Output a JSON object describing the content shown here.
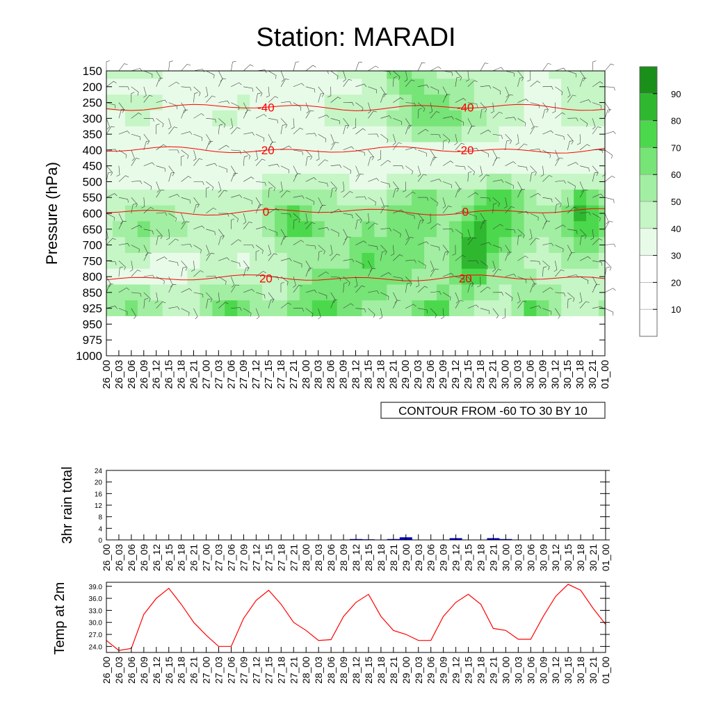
{
  "title": "Station: MARADI",
  "colors": {
    "shade": [
      "#ffffff",
      "#ffffff",
      "#ffffff",
      "#e8fbe8",
      "#c6f5c6",
      "#a2eea2",
      "#76e476",
      "#4cd84c",
      "#2fb82f",
      "#1a8f1a"
    ],
    "temp_contour": "#ff0000",
    "rain_bar": "#0000cc",
    "temp_line": "#ff0000",
    "axis": "#000000"
  },
  "time_labels": [
    "26_00",
    "26_03",
    "26_06",
    "26_09",
    "26_12",
    "26_15",
    "26_18",
    "26_21",
    "27_00",
    "27_03",
    "27_06",
    "27_09",
    "27_12",
    "27_15",
    "27_18",
    "27_21",
    "28_00",
    "28_03",
    "28_06",
    "28_09",
    "28_12",
    "28_15",
    "28_18",
    "28_21",
    "29_00",
    "29_03",
    "29_06",
    "29_09",
    "29_12",
    "29_15",
    "29_18",
    "29_21",
    "30_00",
    "30_03",
    "30_06",
    "30_09",
    "30_12",
    "30_15",
    "30_18",
    "30_21",
    "01_00"
  ],
  "main_chart": {
    "ylabel": "Pressure (hPa)",
    "pressure_levels": [
      150,
      200,
      250,
      300,
      350,
      400,
      450,
      500,
      550,
      600,
      650,
      700,
      750,
      800,
      850,
      925,
      950,
      975,
      1000
    ],
    "footer": "CONTOUR FROM -60 TO 30 BY 10",
    "colorbar_labels": [
      "10",
      "20",
      "30",
      "40",
      "50",
      "60",
      "70",
      "80",
      "90"
    ]
  },
  "chart_data": [
    {
      "type": "heatmap",
      "title": "Station: MARADI",
      "ylabel": "Pressure (hPa)",
      "y_levels": [
        150,
        200,
        250,
        300,
        350,
        400,
        450,
        500,
        550,
        600,
        650,
        700,
        750,
        800,
        850,
        925,
        950,
        975,
        1000
      ],
      "x": [
        "26_00",
        "26_03",
        "26_06",
        "26_09",
        "26_12",
        "26_15",
        "26_18",
        "26_21",
        "27_00",
        "27_03",
        "27_06",
        "27_09",
        "27_12",
        "27_15",
        "27_18",
        "27_21",
        "28_00",
        "28_03",
        "28_06",
        "28_09",
        "28_12",
        "28_15",
        "28_18",
        "28_21",
        "29_00",
        "29_03",
        "29_06",
        "29_09",
        "29_12",
        "29_15",
        "29_18",
        "29_21",
        "30_00",
        "30_03",
        "30_06",
        "30_09",
        "30_12",
        "30_15",
        "30_18",
        "30_21",
        "01_00"
      ],
      "shading_variable_levels": [
        10,
        20,
        30,
        40,
        50,
        60,
        70,
        80,
        90
      ],
      "humidity_columns": [
        [
          45,
          35,
          40,
          30,
          30,
          30,
          30,
          30,
          45,
          45,
          45,
          45,
          45,
          30,
          55,
          55,
          0,
          0,
          0
        ],
        [
          40,
          30,
          40,
          35,
          30,
          30,
          30,
          30,
          45,
          45,
          50,
          45,
          40,
          35,
          50,
          55,
          0,
          0,
          0
        ],
        [
          40,
          30,
          40,
          40,
          30,
          30,
          30,
          30,
          45,
          55,
          55,
          50,
          40,
          35,
          50,
          60,
          0,
          0,
          0
        ],
        [
          40,
          30,
          45,
          40,
          30,
          30,
          30,
          30,
          45,
          55,
          60,
          50,
          40,
          35,
          50,
          55,
          0,
          0,
          0
        ],
        [
          40,
          30,
          40,
          35,
          30,
          30,
          30,
          30,
          40,
          50,
          55,
          45,
          35,
          35,
          45,
          50,
          0,
          0,
          0
        ],
        [
          35,
          30,
          35,
          30,
          30,
          30,
          30,
          30,
          40,
          50,
          55,
          45,
          35,
          35,
          40,
          45,
          0,
          0,
          0
        ],
        [
          35,
          30,
          30,
          30,
          30,
          30,
          30,
          30,
          40,
          45,
          50,
          45,
          35,
          35,
          40,
          40,
          0,
          0,
          0
        ],
        [
          35,
          30,
          30,
          30,
          30,
          30,
          30,
          30,
          40,
          40,
          45,
          40,
          35,
          40,
          45,
          40,
          0,
          0,
          0
        ],
        [
          35,
          30,
          35,
          35,
          30,
          30,
          30,
          35,
          45,
          40,
          45,
          45,
          40,
          40,
          50,
          55,
          0,
          0,
          0
        ],
        [
          35,
          30,
          35,
          40,
          30,
          30,
          30,
          35,
          45,
          40,
          45,
          45,
          40,
          45,
          55,
          65,
          0,
          0,
          0
        ],
        [
          35,
          30,
          35,
          40,
          30,
          30,
          30,
          35,
          45,
          40,
          45,
          45,
          40,
          45,
          55,
          70,
          0,
          0,
          0
        ],
        [
          35,
          30,
          40,
          35,
          30,
          30,
          30,
          35,
          45,
          40,
          45,
          40,
          35,
          40,
          50,
          60,
          0,
          0,
          0
        ],
        [
          30,
          30,
          35,
          35,
          30,
          30,
          30,
          35,
          45,
          40,
          45,
          40,
          40,
          45,
          50,
          50,
          0,
          0,
          0
        ],
        [
          30,
          30,
          35,
          35,
          30,
          30,
          30,
          40,
          50,
          50,
          55,
          45,
          40,
          45,
          45,
          50,
          0,
          0,
          0
        ],
        [
          30,
          30,
          35,
          35,
          30,
          30,
          30,
          40,
          55,
          65,
          65,
          55,
          45,
          45,
          45,
          55,
          0,
          0,
          0
        ],
        [
          30,
          30,
          35,
          35,
          30,
          30,
          30,
          40,
          55,
          70,
          75,
          55,
          50,
          50,
          55,
          60,
          0,
          0,
          0
        ],
        [
          30,
          30,
          35,
          35,
          30,
          30,
          30,
          40,
          55,
          65,
          70,
          55,
          50,
          55,
          60,
          65,
          0,
          0,
          0
        ],
        [
          35,
          30,
          35,
          35,
          30,
          30,
          30,
          40,
          50,
          55,
          60,
          55,
          55,
          60,
          60,
          70,
          0,
          0,
          0
        ],
        [
          35,
          30,
          40,
          40,
          30,
          30,
          30,
          40,
          50,
          55,
          55,
          55,
          55,
          60,
          60,
          70,
          0,
          0,
          0
        ],
        [
          40,
          35,
          40,
          40,
          30,
          30,
          30,
          40,
          45,
          50,
          55,
          55,
          55,
          60,
          60,
          65,
          0,
          0,
          0
        ],
        [
          40,
          35,
          40,
          40,
          30,
          30,
          30,
          35,
          45,
          50,
          55,
          60,
          60,
          60,
          60,
          60,
          0,
          0,
          0
        ],
        [
          45,
          40,
          40,
          40,
          35,
          30,
          30,
          35,
          45,
          55,
          60,
          65,
          70,
          65,
          60,
          55,
          0,
          0,
          0
        ],
        [
          45,
          40,
          40,
          45,
          35,
          30,
          30,
          35,
          45,
          55,
          55,
          60,
          65,
          65,
          60,
          50,
          0,
          0,
          0
        ],
        [
          60,
          55,
          45,
          50,
          40,
          30,
          30,
          40,
          50,
          60,
          60,
          60,
          60,
          60,
          55,
          50,
          0,
          0,
          0
        ],
        [
          60,
          60,
          55,
          55,
          45,
          30,
          30,
          45,
          55,
          65,
          65,
          65,
          60,
          60,
          55,
          55,
          0,
          0,
          0
        ],
        [
          55,
          60,
          60,
          60,
          50,
          35,
          30,
          45,
          60,
          65,
          65,
          60,
          60,
          55,
          55,
          60,
          0,
          0,
          0
        ],
        [
          50,
          55,
          65,
          65,
          55,
          35,
          30,
          45,
          60,
          60,
          60,
          55,
          55,
          55,
          55,
          70,
          0,
          0,
          0
        ],
        [
          45,
          50,
          60,
          65,
          55,
          35,
          30,
          40,
          55,
          55,
          55,
          55,
          55,
          55,
          60,
          70,
          0,
          0,
          0
        ],
        [
          45,
          50,
          55,
          60,
          50,
          35,
          30,
          40,
          50,
          55,
          60,
          60,
          60,
          60,
          55,
          55,
          0,
          0,
          0
        ],
        [
          40,
          50,
          50,
          55,
          45,
          30,
          30,
          40,
          55,
          65,
          70,
          80,
          80,
          70,
          60,
          50,
          0,
          0,
          0
        ],
        [
          40,
          45,
          45,
          50,
          40,
          30,
          30,
          45,
          65,
          75,
          80,
          85,
          80,
          70,
          55,
          45,
          0,
          0,
          0
        ],
        [
          40,
          45,
          40,
          45,
          40,
          30,
          30,
          50,
          70,
          75,
          75,
          70,
          65,
          55,
          50,
          40,
          0,
          0,
          0
        ],
        [
          40,
          40,
          40,
          40,
          35,
          30,
          30,
          50,
          70,
          70,
          70,
          65,
          55,
          50,
          45,
          45,
          0,
          0,
          0
        ],
        [
          40,
          40,
          40,
          40,
          35,
          30,
          30,
          45,
          60,
          65,
          60,
          55,
          50,
          50,
          50,
          55,
          0,
          0,
          0
        ],
        [
          35,
          35,
          35,
          35,
          30,
          30,
          30,
          40,
          50,
          55,
          55,
          50,
          45,
          50,
          55,
          70,
          0,
          0,
          0
        ],
        [
          35,
          35,
          35,
          35,
          30,
          30,
          30,
          40,
          45,
          50,
          50,
          45,
          40,
          45,
          55,
          65,
          0,
          0,
          0
        ],
        [
          40,
          35,
          35,
          35,
          30,
          30,
          30,
          40,
          45,
          50,
          55,
          50,
          45,
          45,
          50,
          50,
          0,
          0,
          0
        ],
        [
          45,
          40,
          40,
          40,
          35,
          30,
          30,
          40,
          55,
          65,
          65,
          55,
          50,
          45,
          45,
          45,
          0,
          0,
          0
        ],
        [
          45,
          40,
          40,
          40,
          35,
          30,
          30,
          45,
          70,
          80,
          75,
          60,
          50,
          45,
          40,
          40,
          0,
          0,
          0
        ],
        [
          45,
          40,
          40,
          40,
          35,
          30,
          30,
          45,
          65,
          75,
          70,
          60,
          50,
          45,
          45,
          40,
          0,
          0,
          0
        ],
        [
          45,
          40,
          40,
          40,
          35,
          30,
          30,
          40,
          55,
          60,
          60,
          55,
          45,
          40,
          40,
          55,
          0,
          0,
          0
        ]
      ],
      "temperature_contours": [
        {
          "value": "-40",
          "pressure": 265
        },
        {
          "value": "-20",
          "pressure": 400
        },
        {
          "value": "0",
          "pressure": 595
        },
        {
          "value": "20",
          "pressure": 805
        }
      ],
      "contour_range": "CONTOUR FROM -60 TO 30 BY 10"
    },
    {
      "type": "bar",
      "ylabel": "3hr rain total",
      "ylim": [
        0,
        24
      ],
      "yticks": [
        "0",
        "4",
        "8",
        "12",
        "16",
        "20",
        "24"
      ],
      "categories": [
        "26_00",
        "26_03",
        "26_06",
        "26_09",
        "26_12",
        "26_15",
        "26_18",
        "26_21",
        "27_00",
        "27_03",
        "27_06",
        "27_09",
        "27_12",
        "27_15",
        "27_18",
        "27_21",
        "28_00",
        "28_03",
        "28_06",
        "28_09",
        "28_12",
        "28_15",
        "28_18",
        "28_21",
        "29_00",
        "29_03",
        "29_06",
        "29_09",
        "29_12",
        "29_15",
        "29_18",
        "29_21",
        "30_00",
        "30_03",
        "30_06",
        "30_09",
        "30_12",
        "30_15",
        "30_18",
        "30_21",
        "01_00"
      ],
      "values": [
        0,
        0,
        0,
        0,
        0,
        0,
        0,
        0,
        0,
        0,
        0,
        0,
        0,
        0,
        0,
        0,
        0,
        0,
        0,
        0,
        0.3,
        0.2,
        0,
        0.3,
        0.9,
        0,
        0,
        0,
        0.6,
        0,
        0,
        0.6,
        0.3,
        0,
        0,
        0,
        0,
        0,
        0,
        0,
        0
      ]
    },
    {
      "type": "line",
      "ylabel": "Temp at 2m",
      "ylim": [
        22.5,
        40.0
      ],
      "yticks": [
        "24.0",
        "27.0",
        "30.0",
        "33.0",
        "36.0",
        "39.0"
      ],
      "x": [
        "26_00",
        "26_03",
        "26_06",
        "26_09",
        "26_12",
        "26_15",
        "26_18",
        "26_21",
        "27_00",
        "27_03",
        "27_06",
        "27_09",
        "27_12",
        "27_15",
        "27_18",
        "27_21",
        "28_00",
        "28_03",
        "28_06",
        "28_09",
        "28_12",
        "28_15",
        "28_18",
        "28_21",
        "29_00",
        "29_03",
        "29_06",
        "29_09",
        "29_12",
        "29_15",
        "29_18",
        "29_21",
        "30_00",
        "30_03",
        "30_06",
        "30_09",
        "30_12",
        "30_15",
        "30_18",
        "30_21",
        "01_00"
      ],
      "values": [
        25.5,
        23.0,
        23.5,
        32.0,
        36.0,
        38.5,
        34.5,
        30.0,
        26.8,
        24.0,
        24.0,
        31.0,
        35.5,
        38.0,
        34.5,
        30.0,
        28.0,
        25.5,
        25.7,
        31.5,
        35.0,
        37.0,
        31.5,
        28.0,
        27.0,
        25.5,
        25.5,
        31.5,
        35.0,
        37.0,
        34.5,
        28.5,
        28.0,
        25.8,
        25.8,
        31.5,
        36.5,
        39.5,
        38.0,
        33.5,
        29.5
      ]
    }
  ]
}
